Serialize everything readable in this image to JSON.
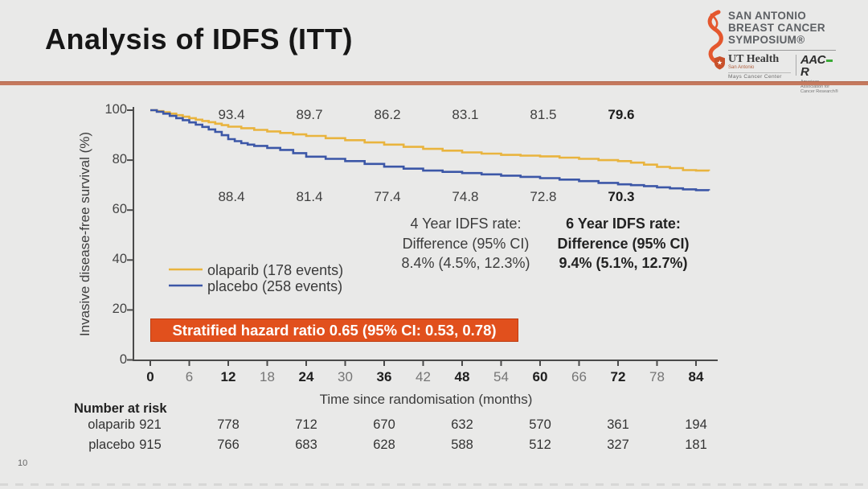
{
  "slide": {
    "title": "Analysis of IDFS (ITT)",
    "page_number": "10"
  },
  "logos": {
    "sabcs_lines": [
      "SAN ANTONIO",
      "BREAST CANCER",
      "SYMPOSIUM®"
    ],
    "ut_health": {
      "brand": "UT Health",
      "location": "San Antonio",
      "division": "Mays Cancer Center"
    },
    "aacr": {
      "brand_left": "AAC",
      "brand_right": "R",
      "tagline": "American Association for Cancer Research®"
    }
  },
  "chart_data": {
    "type": "line",
    "subtype": "kaplan-meier-step",
    "xlabel": "Time since randomisation (months)",
    "ylabel": "Invasive disease-free survival (%)",
    "xlim": [
      0,
      88
    ],
    "ylim": [
      0,
      100
    ],
    "x_ticks": [
      0,
      6,
      12,
      18,
      24,
      30,
      36,
      42,
      48,
      54,
      60,
      66,
      72,
      78,
      84
    ],
    "x_major_ticks": [
      0,
      12,
      24,
      36,
      48,
      60,
      72,
      84
    ],
    "y_ticks": [
      0,
      20,
      40,
      60,
      80,
      100
    ],
    "grid": false,
    "legend_position": "left-middle",
    "series": [
      {
        "name": "olaparib (178 events)",
        "color": "#e9b43e",
        "x": [
          0,
          1,
          2,
          3,
          4,
          5,
          6,
          7,
          8,
          9,
          10,
          11,
          12,
          14,
          16,
          18,
          20,
          22,
          24,
          27,
          30,
          33,
          36,
          39,
          42,
          45,
          48,
          51,
          54,
          57,
          60,
          63,
          66,
          69,
          72,
          74,
          76,
          78,
          80,
          82,
          84,
          86
        ],
        "y": [
          100,
          99.6,
          99.2,
          98.6,
          98.0,
          97.4,
          96.8,
          96.2,
          95.7,
          95.2,
          94.6,
          94.0,
          93.4,
          92.8,
          92.1,
          91.5,
          90.9,
          90.3,
          89.7,
          88.8,
          88.0,
          87.1,
          86.2,
          85.3,
          84.5,
          83.8,
          83.1,
          82.6,
          82.1,
          81.8,
          81.5,
          81.0,
          80.5,
          80.0,
          79.6,
          79.0,
          78.2,
          77.3,
          76.8,
          76.0,
          75.8,
          75.7
        ]
      },
      {
        "name": "placebo (258 events)",
        "color": "#3c57a7",
        "x": [
          0,
          1,
          2,
          3,
          4,
          5,
          6,
          7,
          8,
          9,
          10,
          11,
          12,
          13,
          14,
          15,
          16,
          18,
          20,
          22,
          24,
          27,
          30,
          33,
          36,
          39,
          42,
          45,
          48,
          51,
          54,
          57,
          60,
          63,
          66,
          69,
          72,
          74,
          76,
          78,
          80,
          82,
          84,
          86
        ],
        "y": [
          100,
          99.4,
          98.6,
          97.7,
          96.8,
          96.0,
          95.1,
          94.2,
          93.3,
          92.3,
          91.3,
          90.0,
          88.4,
          87.6,
          86.8,
          86.2,
          85.7,
          84.9,
          84.1,
          82.8,
          81.4,
          80.5,
          79.6,
          78.5,
          77.4,
          76.6,
          75.8,
          75.3,
          74.8,
          74.3,
          73.8,
          73.3,
          72.8,
          72.2,
          71.6,
          70.9,
          70.3,
          70.0,
          69.6,
          69.1,
          68.7,
          68.3,
          68.0,
          67.9
        ]
      }
    ],
    "survival_labels": [
      {
        "series": "olaparib",
        "months": [
          12,
          24,
          36,
          48,
          60,
          72
        ],
        "values": [
          "93.4",
          "89.7",
          "86.2",
          "83.1",
          "81.5",
          "79.6"
        ],
        "bold_last": true
      },
      {
        "series": "placebo",
        "months": [
          12,
          24,
          36,
          48,
          60,
          72
        ],
        "values": [
          "88.4",
          "81.4",
          "77.4",
          "74.8",
          "72.8",
          "70.3"
        ],
        "bold_last": true
      }
    ]
  },
  "stats": {
    "four_year": {
      "lines": [
        "4 Year IDFS rate:",
        "Difference (95% CI)",
        "8.4% (4.5%, 12.3%)"
      ]
    },
    "six_year": {
      "lines": [
        "6 Year IDFS rate:",
        "Difference (95% CI)",
        "9.4% (5.1%, 12.7%)"
      ]
    }
  },
  "hazard_banner": "Stratified hazard ratio 0.65 (95% CI: 0.53, 0.78)",
  "risk_table": {
    "title": "Number at risk",
    "months": [
      0,
      12,
      24,
      36,
      48,
      60,
      72,
      84
    ],
    "rows": [
      {
        "label": "olaparib",
        "values": [
          921,
          778,
          712,
          670,
          632,
          570,
          361,
          194
        ]
      },
      {
        "label": "placebo",
        "values": [
          915,
          766,
          683,
          628,
          588,
          512,
          327,
          181
        ]
      }
    ]
  },
  "colors": {
    "background": "#e9e9e8",
    "divider": "#c5795e",
    "banner_bg": "#e1501d",
    "banner_border": "#bf3c0f",
    "axis": "#4a4a4a",
    "sabcs_orange": "#e4572e",
    "aacr_green": "#3aaa35"
  }
}
